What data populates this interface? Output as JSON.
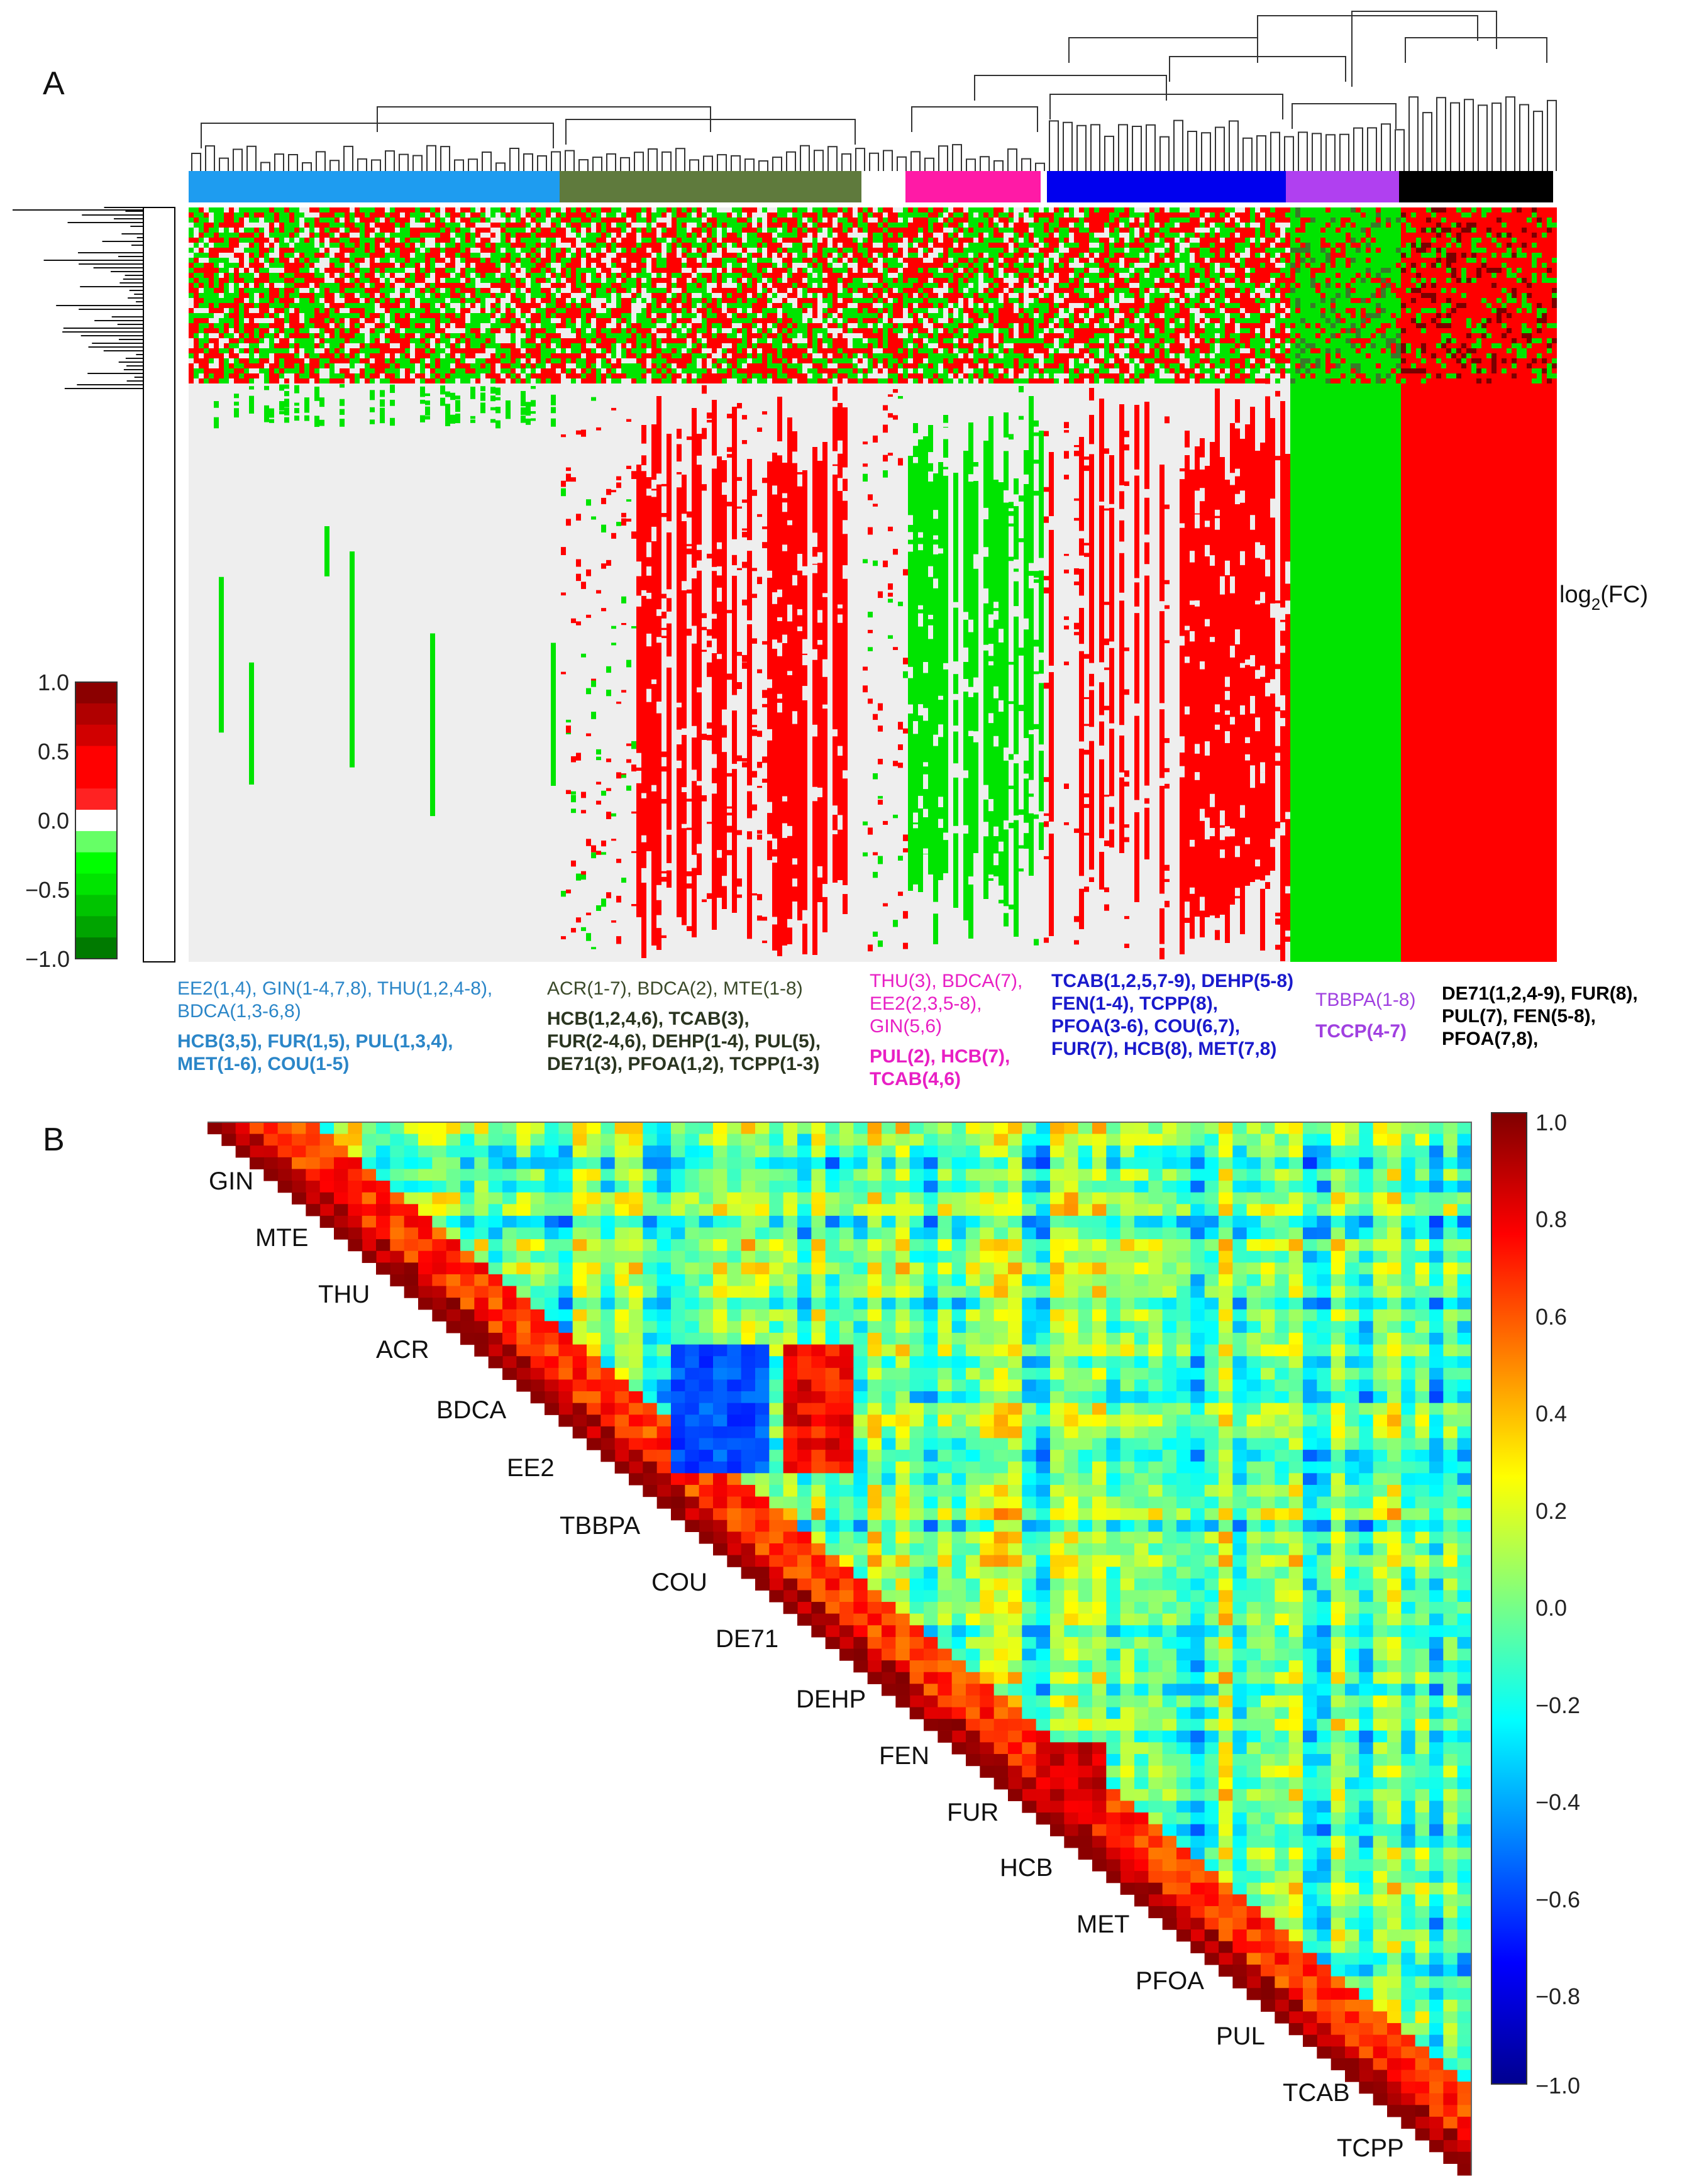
{
  "panels": {
    "a": "A",
    "b": "B"
  },
  "heatmap": {
    "axis_label": "log2(FC)",
    "axis_label_base": "log",
    "axis_label_sub": "2",
    "axis_label_rest": "(FC)",
    "colorbar_ticks": [
      "1.0",
      "0.5",
      "0.0",
      "−0.5",
      "−1.0"
    ],
    "colors": {
      "up": "#ff0000",
      "down": "#00e400",
      "none": "#eeeeee",
      "dark_up": "#8b0000",
      "dark_down": "#007a00"
    }
  },
  "clusters": [
    {
      "name": "light-blue",
      "color": "#1e9cf0",
      "text_color": "#2b86c8",
      "plain": [
        "EE2(1,4), GIN(1-4,7,8), THU(1,2,4-8),",
        "BDCA(1,3-6,8)"
      ],
      "bold": [
        "HCB(3,5), FUR(1,5), PUL(1,3,4),",
        "MET(1-6), COU(1-5)"
      ]
    },
    {
      "name": "olive",
      "color": "#5f7a3d",
      "text_color": "#3b4a2a",
      "plain": [
        "ACR(1-7), BDCA(2), MTE(1-8)"
      ],
      "bold": [
        "HCB(1,2,4,6), TCAB(3),",
        "FUR(2-4,6), DEHP(1-4), PUL(5),",
        "DE71(3), PFOA(1,2), TCPP(1-3)"
      ]
    },
    {
      "name": "magenta",
      "color": "#ff1aa6",
      "text_color": "#e81fc4",
      "plain": [
        "THU(3), BDCA(7),",
        "EE2(2,3,5-8),",
        "GIN(5,6)"
      ],
      "bold": [
        "PUL(2), HCB(7),",
        "TCAB(4,6)"
      ]
    },
    {
      "name": "blue",
      "color": "#0000ee",
      "text_color": "#1a1acc",
      "plain": [],
      "bold": [
        "TCAB(1,2,5,7-9), DEHP(5-8)",
        "FEN(1-4), TCPP(8),",
        "PFOA(3-6), COU(6,7),",
        "FUR(7), HCB(8), MET(7,8)"
      ]
    },
    {
      "name": "purple",
      "color": "#b040f0",
      "text_color": "#a040e0",
      "plain": [
        "TBBPA(1-8)"
      ],
      "bold": [
        "TCCP(4-7)"
      ]
    },
    {
      "name": "black",
      "color": "#000000",
      "text_color": "#000000",
      "plain": [],
      "bold": [
        "DE71(1,2,4-9), FUR(8),",
        "PUL(7), FEN(5-8),",
        "PFOA(7,8),"
      ]
    }
  ],
  "chart_data": [
    {
      "type": "heatmap",
      "title": "",
      "xlabel": "",
      "ylabel": "",
      "colorbar_label": "log2(FC)",
      "colorbar_range": [
        -1.0,
        1.0
      ],
      "colorbar_ticks": [
        1.0,
        0.5,
        0.0,
        -0.5,
        -1.0
      ],
      "clusters": [
        "light-blue",
        "olive",
        "white",
        "magenta",
        "blue",
        "purple",
        "black"
      ]
    },
    {
      "type": "heatmap",
      "title": "",
      "colorbar_range": [
        -1.0,
        1.0
      ],
      "colorbar_ticks": [
        1.0,
        0.8,
        0.6,
        0.4,
        0.2,
        0.0,
        -0.2,
        -0.4,
        -0.6,
        -0.8,
        -1.0
      ],
      "diagonal_labels": [
        "GIN",
        "MTE",
        "THU",
        "ACR",
        "BDCA",
        "EE2",
        "TBBPA",
        "COU",
        "DE71",
        "DEHP",
        "FEN",
        "FUR",
        "HCB",
        "MET",
        "PFOA",
        "PUL",
        "TCAB",
        "TCPP"
      ]
    }
  ],
  "correlation": {
    "colorbar_ticks": [
      "1.0",
      "0.8",
      "0.6",
      "0.4",
      "0.2",
      "0.0",
      "−0.2",
      "−0.4",
      "−0.6",
      "−0.8",
      "−1.0"
    ],
    "labels": [
      "GIN",
      "MTE",
      "THU",
      "ACR",
      "BDCA",
      "EE2",
      "TBBPA",
      "COU",
      "DE71",
      "DEHP",
      "FEN",
      "FUR",
      "HCB",
      "MET",
      "PFOA",
      "PUL",
      "TCAB",
      "TCPP"
    ]
  }
}
